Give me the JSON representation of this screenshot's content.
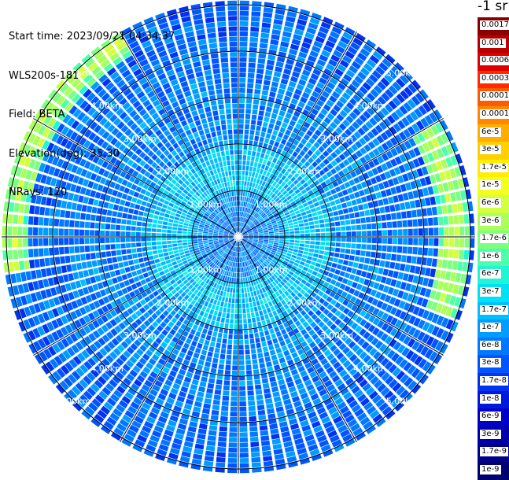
{
  "info": {
    "start_time": "Start time: 2023/09/21 04:34:37",
    "instrument": "WLS200s-181",
    "field": "Field: BETA",
    "elevation": "Elevation(deg): 35.30",
    "nrays": "NRays: 120"
  },
  "colorbar": {
    "units_label": "-1 sr",
    "labels": [
      "0.0017",
      "0.001",
      "0.0006",
      "0.0003",
      "0.00017",
      "0.0001",
      "6e-5",
      "3e-5",
      "1.7e-5",
      "1e-5",
      "6e-6",
      "3e-6",
      "1.7e-6",
      "1e-6",
      "6e-7",
      "3e-7",
      "1.7e-7",
      "1e-7",
      "6e-8",
      "3e-8",
      "1.7e-8",
      "1e-8",
      "6e-9",
      "3e-9",
      "1.7e-9",
      "1e-9"
    ],
    "colors": [
      "#8a0000",
      "#b80000",
      "#e00000",
      "#ff2a00",
      "#ff5a00",
      "#ff8800",
      "#ffae00",
      "#ffd000",
      "#ffee00",
      "#f2ff20",
      "#d2ff40",
      "#aaff5a",
      "#7dff80",
      "#4dffaa",
      "#22f5d6",
      "#00e1f5",
      "#00c0ff",
      "#009cff",
      "#0078ff",
      "#0055ff",
      "#0033f0",
      "#0018dc",
      "#0000c8",
      "#0000aa",
      "#00008c",
      "#000070"
    ]
  },
  "chart_data": {
    "type": "heatmap",
    "projection": "polar (plan position indicator)",
    "field": "BETA",
    "instrument": "WLS200s-181",
    "elevation_deg": 35.3,
    "n_rays": 120,
    "range_rings_km": [
      1,
      2,
      3,
      4,
      5
    ],
    "ring_labels": [
      "1.00km",
      "2.00km",
      "3.00km",
      "4.00km",
      "5.00km"
    ],
    "max_range_km": 5.1,
    "spoke_azimuths_deg": [
      0,
      30,
      60,
      90,
      120,
      150,
      180,
      210,
      240,
      270,
      300,
      330
    ],
    "value_range": [
      1e-09,
      0.0017
    ],
    "scale": "log",
    "typical_value_ranges": [
      {
        "range_km": [
          0,
          1.0
        ],
        "value_approx": "6e-8 to 1.7e-7"
      },
      {
        "range_km": [
          1.0,
          2.0
        ],
        "value_approx": "1.7e-7 to 3e-7"
      },
      {
        "range_km": [
          2.0,
          4.0
        ],
        "value_approx": "3e-8 to 1e-7"
      },
      {
        "range_km": [
          4.0,
          5.1
        ],
        "value_approx": "1.7e-8 to 1e-7"
      }
    ],
    "enhanced_regions": [
      {
        "azimuth_deg": [
          260,
          330
        ],
        "range_km": [
          4.6,
          5.1
        ],
        "value_approx": "1e-6 to 1e-5"
      },
      {
        "azimuth_deg": [
          60,
          110
        ],
        "range_km": [
          4.3,
          5.0
        ],
        "value_approx": "6e-7 to 3e-6"
      }
    ]
  }
}
